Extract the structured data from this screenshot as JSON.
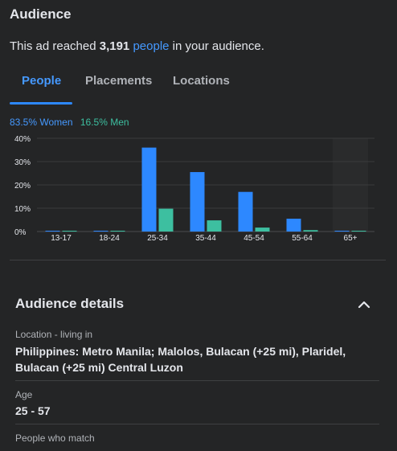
{
  "header": {
    "title": "Audience"
  },
  "reach": {
    "prefix": "This ad reached ",
    "count": "3,191",
    "link": "people",
    "suffix": " in your audience."
  },
  "tabs": [
    {
      "label": "People",
      "active": true
    },
    {
      "label": "Placements",
      "active": false
    },
    {
      "label": "Locations",
      "active": false
    }
  ],
  "legend": {
    "women": "83.5% Women",
    "men": "16.5% Men"
  },
  "colors": {
    "women": "#2d88ff",
    "men": "#3dbfa0",
    "accent": "#4599ff"
  },
  "chart_data": {
    "type": "bar",
    "categories": [
      "13-17",
      "18-24",
      "25-34",
      "35-44",
      "45-54",
      "55-64",
      "65+"
    ],
    "series": [
      {
        "name": "Women",
        "values": [
          0.2,
          0.3,
          36,
          25.5,
          17,
          5.5,
          0.2
        ]
      },
      {
        "name": "Men",
        "values": [
          0.1,
          0.2,
          9.8,
          4.8,
          1.7,
          0.6,
          0.1
        ]
      }
    ],
    "yticks": [
      "0%",
      "10%",
      "20%",
      "30%",
      "40%"
    ],
    "ylim": [
      0,
      40
    ],
    "highlighted_category": "65+"
  },
  "details": {
    "title": "Audience details",
    "chevron_icon": "chevron-up-icon",
    "fields": [
      {
        "label": "Location - living in",
        "value": "Philippines: Metro Manila; Malolos, Bulacan (+25 mi), Plaridel, Bulacan (+25 mi) Central Luzon"
      },
      {
        "label": "Age",
        "value": "25 - 57"
      },
      {
        "label": "People who match",
        "value": ""
      }
    ]
  }
}
